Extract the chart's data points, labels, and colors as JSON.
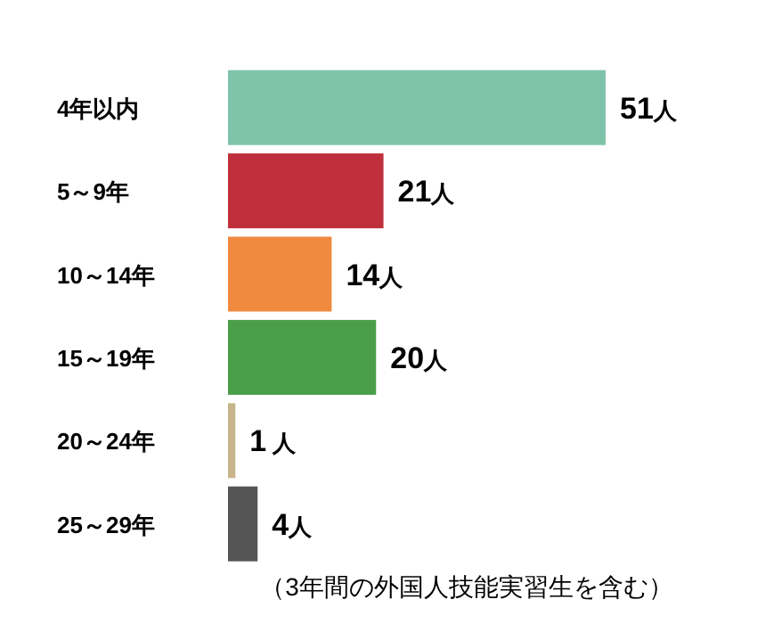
{
  "chart_data": {
    "type": "bar",
    "orientation": "horizontal",
    "categories": [
      "4年以内",
      "5～9年",
      "10～14年",
      "15～19年",
      "20～24年",
      "25～29年"
    ],
    "values": [
      51,
      21,
      14,
      20,
      1,
      4
    ],
    "colors": [
      "#7fc4aa",
      "#c0303c",
      "#f08a3e",
      "#4a9e4a",
      "#c8b48a",
      "#555555"
    ],
    "value_labels": [
      "51人",
      "21人",
      "14人",
      "20人",
      "1 人",
      "4人"
    ],
    "annotations": [
      "（3年間の外国人技能実習生を含む）"
    ],
    "grid": false
  }
}
